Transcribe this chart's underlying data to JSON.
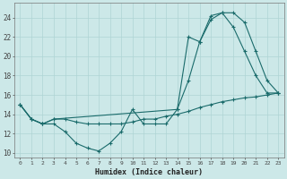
{
  "title": "",
  "xlabel": "Humidex (Indice chaleur)",
  "ylabel": "",
  "xlim": [
    -0.5,
    23.5
  ],
  "ylim": [
    9.5,
    25.5
  ],
  "xticks": [
    0,
    1,
    2,
    3,
    4,
    5,
    6,
    7,
    8,
    9,
    10,
    11,
    12,
    13,
    14,
    15,
    16,
    17,
    18,
    19,
    20,
    21,
    22,
    23
  ],
  "yticks": [
    10,
    12,
    14,
    16,
    18,
    20,
    22,
    24
  ],
  "bg_color": "#cce8e8",
  "line_color": "#1a6b6b",
  "grid_color": "#afd4d4",
  "line1_x": [
    0,
    1,
    2,
    3,
    4,
    5,
    6,
    7,
    8,
    9,
    10,
    11,
    12,
    13,
    14,
    15,
    16,
    17,
    18,
    19,
    20,
    21,
    22,
    23
  ],
  "line1_y": [
    15,
    13.5,
    13,
    13,
    12.2,
    11,
    10.5,
    10.2,
    11,
    12.2,
    14.5,
    13,
    13,
    13,
    14.5,
    17.5,
    21.5,
    23.8,
    24.5,
    23,
    20.5,
    18,
    16.2,
    16.2
  ],
  "line2_x": [
    0,
    1,
    2,
    3,
    14,
    15,
    16,
    17,
    18,
    19,
    20,
    21,
    22,
    23
  ],
  "line2_y": [
    15,
    13.5,
    13,
    13.5,
    14.5,
    22,
    21.5,
    24.2,
    24.5,
    24.5,
    23.5,
    20.5,
    17.5,
    16.2
  ],
  "line3_x": [
    0,
    1,
    2,
    3,
    4,
    5,
    6,
    7,
    8,
    9,
    10,
    11,
    12,
    13,
    14,
    15,
    16,
    17,
    18,
    19,
    20,
    21,
    22,
    23
  ],
  "line3_y": [
    15,
    13.5,
    13,
    13.5,
    13.5,
    13.2,
    13.0,
    13.0,
    13.0,
    13.0,
    13.2,
    13.5,
    13.5,
    13.8,
    14.0,
    14.3,
    14.7,
    15.0,
    15.3,
    15.5,
    15.7,
    15.8,
    16.0,
    16.2
  ]
}
